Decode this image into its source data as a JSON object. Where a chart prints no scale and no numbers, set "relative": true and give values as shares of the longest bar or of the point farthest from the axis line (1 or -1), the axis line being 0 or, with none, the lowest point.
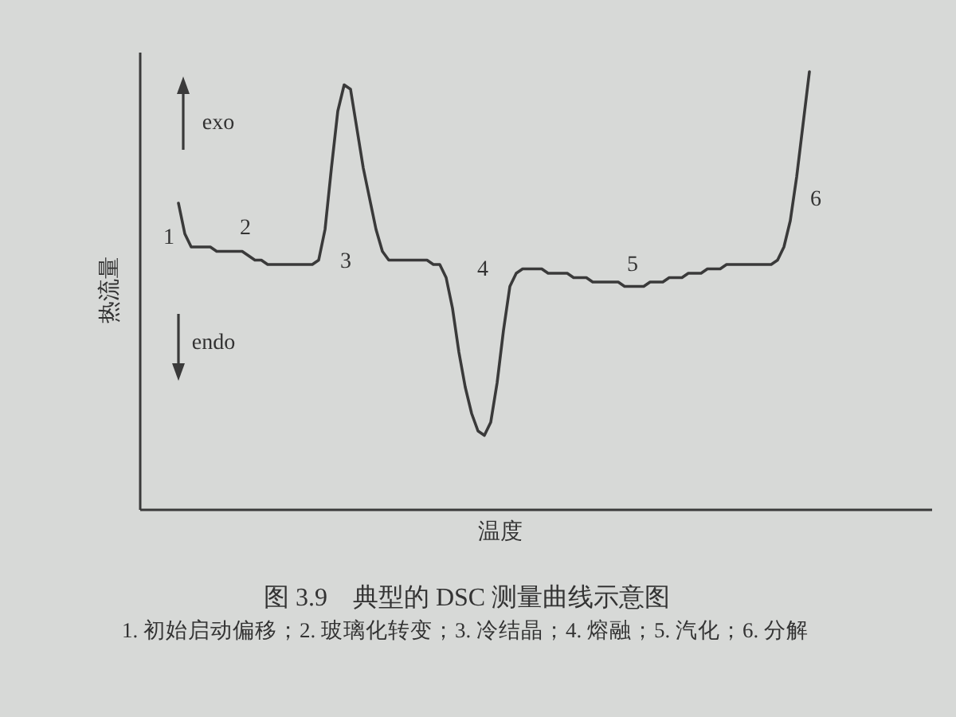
{
  "chart_data": {
    "type": "line",
    "relative": true,
    "xlabel": "温度",
    "ylabel": "热流量",
    "categories": [
      null,
      null,
      null,
      null,
      null,
      null,
      null,
      null,
      null,
      null,
      null,
      null,
      null,
      null,
      null,
      null,
      null,
      null,
      null,
      null,
      null,
      null,
      null,
      null,
      null,
      null,
      null,
      null,
      null,
      null,
      null,
      null,
      null,
      null,
      null,
      null,
      null,
      null,
      null,
      null,
      null,
      null,
      null,
      null,
      null,
      null,
      null,
      null,
      null,
      null,
      null,
      null,
      null,
      null,
      null,
      null,
      null,
      null,
      null,
      null,
      null,
      null,
      null,
      null,
      null,
      null,
      null,
      null,
      null,
      null,
      null,
      null,
      null,
      null,
      null,
      null,
      null,
      null,
      null,
      null,
      null,
      null,
      null,
      null,
      null,
      null,
      null,
      null,
      null,
      null,
      null,
      null,
      null,
      null,
      null,
      null,
      null,
      null,
      null,
      null
    ],
    "series": [
      {
        "color": "#3a3a3a",
        "values": [
          0.7,
          0.63,
          0.6,
          0.6,
          0.6,
          0.6,
          0.59,
          0.59,
          0.59,
          0.59,
          0.59,
          0.58,
          0.57,
          0.57,
          0.56,
          0.56,
          0.56,
          0.56,
          0.56,
          0.56,
          0.56,
          0.56,
          0.57,
          0.64,
          0.78,
          0.91,
          0.97,
          0.96,
          0.87,
          0.78,
          0.71,
          0.64,
          0.59,
          0.57,
          0.57,
          0.57,
          0.57,
          0.57,
          0.57,
          0.57,
          0.56,
          0.56,
          0.53,
          0.46,
          0.36,
          0.28,
          0.22,
          0.18,
          0.17,
          0.2,
          0.29,
          0.41,
          0.51,
          0.54,
          0.55,
          0.55,
          0.55,
          0.55,
          0.54,
          0.54,
          0.54,
          0.54,
          0.53,
          0.53,
          0.53,
          0.52,
          0.52,
          0.52,
          0.52,
          0.52,
          0.51,
          0.51,
          0.51,
          0.51,
          0.52,
          0.52,
          0.52,
          0.53,
          0.53,
          0.53,
          0.54,
          0.54,
          0.54,
          0.55,
          0.55,
          0.55,
          0.56,
          0.56,
          0.56,
          0.56,
          0.56,
          0.56,
          0.56,
          0.56,
          0.57,
          0.6,
          0.66,
          0.76,
          0.88,
          1.0
        ]
      }
    ],
    "annotations": [
      "exo",
      "endo",
      "1",
      "2",
      "3",
      "4",
      "5",
      "6",
      "图 3.9　典型的 DSC 测量曲线示意图",
      "1. 初始启动偏移；2. 玻璃化转变；3. 冷结晶；4. 熔融；5. 汽化；6. 分解"
    ]
  }
}
